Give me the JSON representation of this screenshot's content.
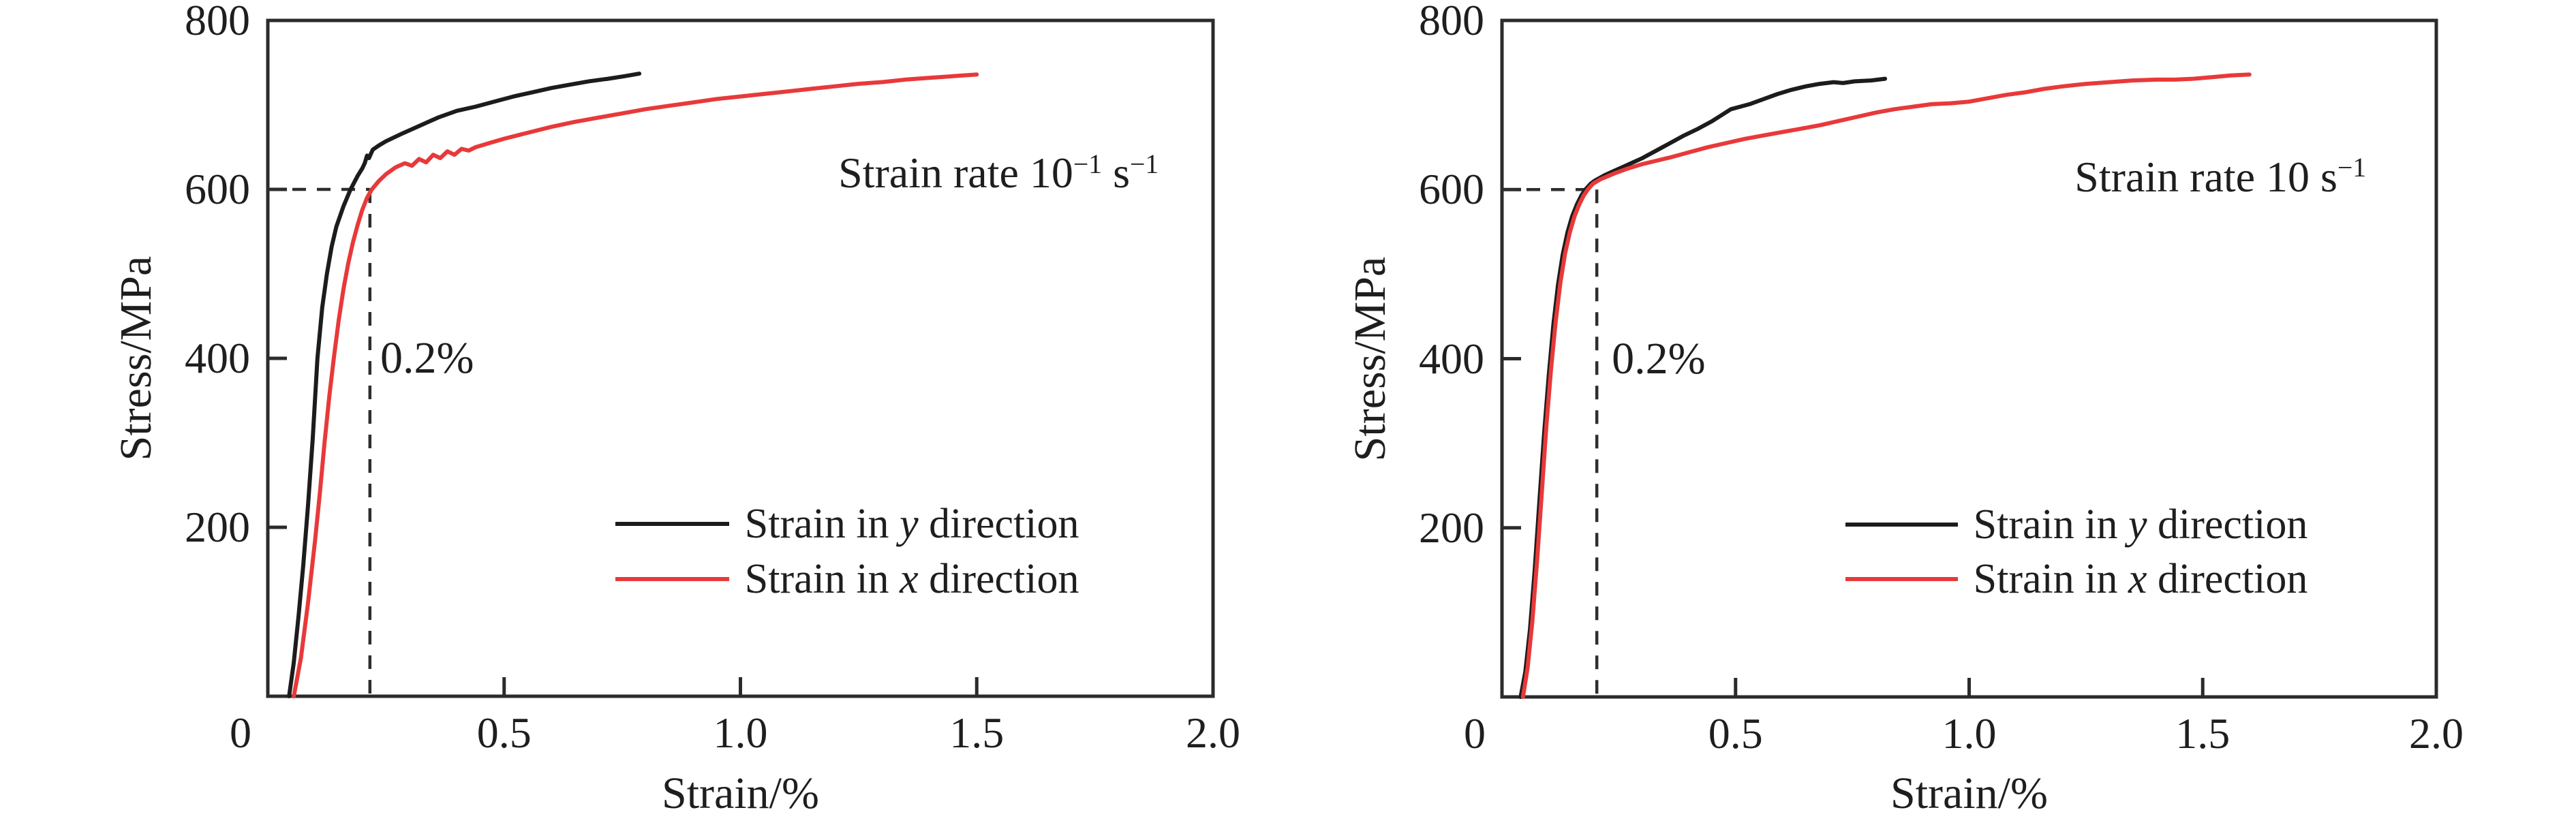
{
  "figure": {
    "background": "#ffffff",
    "axis_color": "#2b2b2b",
    "text_color": "#1e1e1e",
    "guide_color": "#2e2e2e",
    "series_black": "#1c1c1c",
    "series_red": "#e8393a"
  },
  "chart_data": [
    {
      "id": "panel-strain-rate-0.1",
      "type": "line",
      "xlabel": "Strain/%",
      "ylabel": "Stress/MPa",
      "xlim": [
        0,
        2.0
      ],
      "ylim": [
        0,
        800
      ],
      "grid": false,
      "legend_position": "lower-right-inside",
      "xticks": [
        {
          "v": 0,
          "label": "0"
        },
        {
          "v": 0.5,
          "label": "0.5"
        },
        {
          "v": 1.0,
          "label": "1.0"
        },
        {
          "v": 1.5,
          "label": "1.5"
        },
        {
          "v": 2.0,
          "label": "2.0"
        }
      ],
      "yticks": [
        {
          "v": 200,
          "label": "200"
        },
        {
          "v": 400,
          "label": "400"
        },
        {
          "v": 600,
          "label": "600"
        },
        {
          "v": 800,
          "label": "800"
        }
      ],
      "annotation": {
        "text": "Strain rate 10⁻¹ s⁻¹",
        "parts": [
          {
            "t": "Strain rate 10",
            "sup": false
          },
          {
            "t": "−1",
            "sup": true
          },
          {
            "t": " s",
            "sup": false
          },
          {
            "t": "−1",
            "sup": true
          }
        ],
        "anchor": {
          "strain": 1.885,
          "stress": 619
        }
      },
      "offset_label": {
        "text": "0.2%",
        "strain": 0.238,
        "stress": 400
      },
      "guides": {
        "h_stress": 600,
        "v_strain": 0.216
      },
      "legend": {
        "line_strain": [
          0.735,
          0.976
        ],
        "text_strain": 1.009,
        "rows_stress": [
          204,
          139
        ]
      },
      "series": [
        {
          "name": "Strain in y direction",
          "name_parts": [
            "Strain in ",
            "y",
            " direction"
          ],
          "color": "#1c1c1c",
          "points": [
            [
              0.045,
              0
            ],
            [
              0.055,
              40
            ],
            [
              0.065,
              95
            ],
            [
              0.075,
              155
            ],
            [
              0.085,
              225
            ],
            [
              0.095,
              305
            ],
            [
              0.105,
              400
            ],
            [
              0.115,
              460
            ],
            [
              0.125,
              500
            ],
            [
              0.135,
              532
            ],
            [
              0.145,
              556
            ],
            [
              0.16,
              580
            ],
            [
              0.175,
              600
            ],
            [
              0.19,
              616
            ],
            [
              0.2,
              625
            ],
            [
              0.205,
              631
            ],
            [
              0.21,
              640
            ],
            [
              0.214,
              637
            ],
            [
              0.222,
              647
            ],
            [
              0.235,
              652
            ],
            [
              0.25,
              657
            ],
            [
              0.28,
              665
            ],
            [
              0.32,
              675
            ],
            [
              0.36,
              685
            ],
            [
              0.4,
              693
            ],
            [
              0.44,
              698
            ],
            [
              0.48,
              704
            ],
            [
              0.52,
              710
            ],
            [
              0.56,
              715
            ],
            [
              0.6,
              720
            ],
            [
              0.64,
              724
            ],
            [
              0.68,
              728
            ],
            [
              0.72,
              731
            ],
            [
              0.755,
              734
            ],
            [
              0.786,
              737
            ]
          ]
        },
        {
          "name": "Strain in x direction",
          "name_parts": [
            "Strain in ",
            "x",
            " direction"
          ],
          "color": "#e8393a",
          "points": [
            [
              0.055,
              0
            ],
            [
              0.07,
              45
            ],
            [
              0.085,
              110
            ],
            [
              0.1,
              185
            ],
            [
              0.11,
              240
            ],
            [
              0.12,
              300
            ],
            [
              0.13,
              355
            ],
            [
              0.14,
              402
            ],
            [
              0.15,
              445
            ],
            [
              0.16,
              482
            ],
            [
              0.17,
              512
            ],
            [
              0.18,
              537
            ],
            [
              0.19,
              558
            ],
            [
              0.2,
              576
            ],
            [
              0.21,
              590
            ],
            [
              0.22,
              600
            ],
            [
              0.235,
              610
            ],
            [
              0.25,
              618
            ],
            [
              0.27,
              626
            ],
            [
              0.29,
              631
            ],
            [
              0.305,
              628
            ],
            [
              0.32,
              636
            ],
            [
              0.335,
              632
            ],
            [
              0.35,
              641
            ],
            [
              0.365,
              637
            ],
            [
              0.38,
              645
            ],
            [
              0.395,
              641
            ],
            [
              0.41,
              648
            ],
            [
              0.425,
              646
            ],
            [
              0.44,
              650
            ],
            [
              0.47,
              655
            ],
            [
              0.5,
              660
            ],
            [
              0.55,
              667
            ],
            [
              0.6,
              674
            ],
            [
              0.65,
              680
            ],
            [
              0.7,
              685
            ],
            [
              0.75,
              690
            ],
            [
              0.8,
              695
            ],
            [
              0.85,
              699
            ],
            [
              0.9,
              703
            ],
            [
              0.95,
              707
            ],
            [
              1.0,
              710
            ],
            [
              1.05,
              713
            ],
            [
              1.1,
              716
            ],
            [
              1.15,
              719
            ],
            [
              1.2,
              722
            ],
            [
              1.25,
              725
            ],
            [
              1.3,
              727
            ],
            [
              1.35,
              730
            ],
            [
              1.4,
              732
            ],
            [
              1.45,
              734
            ],
            [
              1.5,
              736
            ]
          ]
        }
      ]
    },
    {
      "id": "panel-strain-rate-10",
      "type": "line",
      "xlabel": "Strain/%",
      "ylabel": "Stress/MPa",
      "xlim": [
        0,
        2.0
      ],
      "ylim": [
        0,
        800
      ],
      "grid": false,
      "legend_position": "lower-right-inside",
      "xticks": [
        {
          "v": 0,
          "label": "0"
        },
        {
          "v": 0.5,
          "label": "0.5"
        },
        {
          "v": 1.0,
          "label": "1.0"
        },
        {
          "v": 1.5,
          "label": "1.5"
        },
        {
          "v": 2.0,
          "label": "2.0"
        }
      ],
      "yticks": [
        {
          "v": 200,
          "label": "200"
        },
        {
          "v": 400,
          "label": "400"
        },
        {
          "v": 600,
          "label": "600"
        },
        {
          "v": 800,
          "label": "800"
        }
      ],
      "annotation": {
        "text": "Strain rate 10 s⁻¹",
        "parts": [
          {
            "t": "Strain rate 10 s",
            "sup": false
          },
          {
            "t": "−1",
            "sup": true
          }
        ],
        "anchor": {
          "strain": 1.85,
          "stress": 615
        }
      },
      "offset_label": {
        "text": "0.2%",
        "strain": 0.235,
        "stress": 400
      },
      "guides": {
        "h_stress": 600,
        "v_strain": 0.203
      },
      "legend": {
        "line_strain": [
          0.735,
          0.976
        ],
        "text_strain": 1.009,
        "rows_stress": [
          204,
          139
        ]
      },
      "series": [
        {
          "name": "Strain in y direction",
          "name_parts": [
            "Strain in ",
            "y",
            " direction"
          ],
          "color": "#1c1c1c",
          "points": [
            [
              0.04,
              0
            ],
            [
              0.05,
              30
            ],
            [
              0.06,
              80
            ],
            [
              0.07,
              150
            ],
            [
              0.08,
              230
            ],
            [
              0.09,
              310
            ],
            [
              0.1,
              380
            ],
            [
              0.11,
              440
            ],
            [
              0.12,
              488
            ],
            [
              0.13,
              523
            ],
            [
              0.14,
              549
            ],
            [
              0.15,
              568
            ],
            [
              0.16,
              582
            ],
            [
              0.17,
              593
            ],
            [
              0.18,
              601
            ],
            [
              0.19,
              607
            ],
            [
              0.2,
              611
            ],
            [
              0.22,
              617
            ],
            [
              0.24,
              622
            ],
            [
              0.26,
              627
            ],
            [
              0.28,
              632
            ],
            [
              0.3,
              637
            ],
            [
              0.33,
              646
            ],
            [
              0.36,
              655
            ],
            [
              0.39,
              664
            ],
            [
              0.42,
              672
            ],
            [
              0.45,
              681
            ],
            [
              0.47,
              688
            ],
            [
              0.49,
              695
            ],
            [
              0.51,
              698
            ],
            [
              0.53,
              701
            ],
            [
              0.56,
              707
            ],
            [
              0.59,
              713
            ],
            [
              0.62,
              718
            ],
            [
              0.65,
              722
            ],
            [
              0.68,
              725
            ],
            [
              0.71,
              727
            ],
            [
              0.73,
              726
            ],
            [
              0.755,
              728
            ],
            [
              0.79,
              729
            ],
            [
              0.82,
              731
            ]
          ]
        },
        {
          "name": "Strain in x direction",
          "name_parts": [
            "Strain in ",
            "x",
            " direction"
          ],
          "color": "#e8393a",
          "points": [
            [
              0.045,
              0
            ],
            [
              0.055,
              35
            ],
            [
              0.065,
              90
            ],
            [
              0.075,
              160
            ],
            [
              0.085,
              240
            ],
            [
              0.095,
              320
            ],
            [
              0.105,
              388
            ],
            [
              0.115,
              444
            ],
            [
              0.125,
              490
            ],
            [
              0.135,
              524
            ],
            [
              0.145,
              549
            ],
            [
              0.155,
              568
            ],
            [
              0.165,
              582
            ],
            [
              0.175,
              593
            ],
            [
              0.185,
              601
            ],
            [
              0.195,
              607
            ],
            [
              0.21,
              612
            ],
            [
              0.24,
              619
            ],
            [
              0.27,
              625
            ],
            [
              0.3,
              630
            ],
            [
              0.33,
              634
            ],
            [
              0.36,
              638
            ],
            [
              0.4,
              644
            ],
            [
              0.44,
              650
            ],
            [
              0.48,
              655
            ],
            [
              0.52,
              660
            ],
            [
              0.56,
              664
            ],
            [
              0.6,
              668
            ],
            [
              0.64,
              672
            ],
            [
              0.68,
              676
            ],
            [
              0.72,
              681
            ],
            [
              0.76,
              686
            ],
            [
              0.8,
              691
            ],
            [
              0.84,
              695
            ],
            [
              0.88,
              698
            ],
            [
              0.92,
              701
            ],
            [
              0.96,
              702
            ],
            [
              1.0,
              704
            ],
            [
              1.04,
              708
            ],
            [
              1.08,
              712
            ],
            [
              1.12,
              715
            ],
            [
              1.16,
              719
            ],
            [
              1.2,
              722
            ],
            [
              1.25,
              725
            ],
            [
              1.3,
              727
            ],
            [
              1.35,
              729
            ],
            [
              1.4,
              730
            ],
            [
              1.44,
              730
            ],
            [
              1.48,
              731
            ],
            [
              1.52,
              733
            ],
            [
              1.56,
              735
            ],
            [
              1.6,
              736
            ]
          ]
        }
      ]
    }
  ]
}
